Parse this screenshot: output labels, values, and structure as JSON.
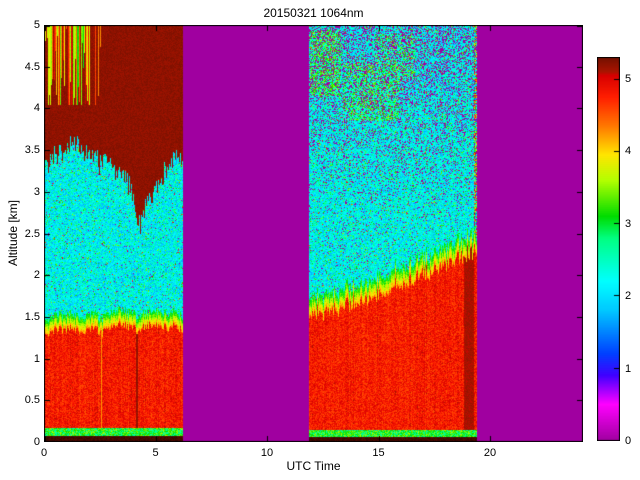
{
  "chart_data": {
    "type": "heatmap",
    "title": "20150321 1064nm",
    "xlabel": "UTC Time",
    "ylabel": "Altitude [km]",
    "xlim": [
      0,
      24.17
    ],
    "ylim": [
      0,
      5
    ],
    "xticks": [
      0,
      5,
      10,
      15,
      20
    ],
    "yticks": [
      0,
      0.5,
      1,
      1.5,
      2,
      2.5,
      3,
      3.5,
      4,
      4.5,
      5
    ],
    "background_value": 0,
    "background_color": "#a000a0",
    "colorbar": {
      "ticks": [
        0,
        1,
        2,
        3,
        4,
        5
      ],
      "vmin": 0,
      "vmax": 5.3
    },
    "colormap": [
      [
        0.0,
        "#a000a0"
      ],
      [
        0.5,
        "#ff00ff"
      ],
      [
        0.9,
        "#4000ff"
      ],
      [
        1.2,
        "#0040ff"
      ],
      [
        1.8,
        "#00c8ff"
      ],
      [
        2.2,
        "#00ffff"
      ],
      [
        2.8,
        "#00ff80"
      ],
      [
        3.1,
        "#00dc00"
      ],
      [
        3.6,
        "#b4ff00"
      ],
      [
        3.95,
        "#ffe600"
      ],
      [
        4.35,
        "#ff7800"
      ],
      [
        4.75,
        "#ff1e00"
      ],
      [
        5.05,
        "#d70000"
      ],
      [
        5.1,
        "#aa1400"
      ],
      [
        5.3,
        "#731000"
      ],
      [
        5.45,
        "#2d0500"
      ]
    ],
    "segments": [
      {
        "name": "morning-block",
        "t_start": 0,
        "t_end": 6.2,
        "surface_dark_top_km": 0.08,
        "surface_green_top_km": 0.17,
        "red_top_km": [
          [
            0,
            1.3
          ],
          [
            0.7,
            1.36
          ],
          [
            1.4,
            1.33
          ],
          [
            2.2,
            1.38
          ],
          [
            2.6,
            1.3
          ],
          [
            3.2,
            1.42
          ],
          [
            3.8,
            1.4
          ],
          [
            4.2,
            1.33
          ],
          [
            4.8,
            1.42
          ],
          [
            5.5,
            1.38
          ],
          [
            6.2,
            1.34
          ]
        ],
        "red_top_jitter": 0.05,
        "transition_km": 0.18,
        "dark_streaks": [
          {
            "t": 2.56,
            "w": 0.04,
            "v": 4.25
          },
          {
            "t": 4.15,
            "w": 0.035,
            "v": 5.18
          }
        ],
        "cloud_base_km": [
          [
            0,
            3.32
          ],
          [
            0.8,
            3.5
          ],
          [
            1.6,
            3.55
          ],
          [
            2.3,
            3.38
          ],
          [
            3.0,
            3.32
          ],
          [
            3.7,
            3.18
          ],
          [
            4.3,
            2.56
          ],
          [
            4.7,
            2.98
          ],
          [
            5.1,
            3.12
          ],
          [
            5.7,
            3.34
          ],
          [
            6.2,
            3.42
          ]
        ],
        "cloud_edge_jitter": 0.22,
        "stripe_zone": {
          "t_end": 2.6,
          "h_start": 4.05
        },
        "purple_prob_base": 0.015,
        "purple_h0": 4.0,
        "purple_slope": 0.0,
        "green_speck_prob": 0.05,
        "clear_base": 1.55,
        "clear_range": 1.2
      },
      {
        "name": "afternoon-block",
        "t_start": 11.85,
        "t_end": 19.4,
        "surface_dark_top_km": 0.07,
        "surface_green_top_km": 0.15,
        "red_top_km": [
          [
            11.85,
            1.52
          ],
          [
            12.5,
            1.56
          ],
          [
            13.2,
            1.62
          ],
          [
            14.0,
            1.68
          ],
          [
            15.0,
            1.78
          ],
          [
            16.0,
            1.9
          ],
          [
            17.0,
            2.0
          ],
          [
            18.0,
            2.12
          ],
          [
            18.7,
            2.22
          ],
          [
            19.4,
            2.32
          ]
        ],
        "red_top_jitter": 0.09,
        "transition_km": 0.22,
        "dark_streaks": [
          {
            "t": 19.05,
            "w": 0.22,
            "v": 5.12
          }
        ],
        "purple_prob_base": 0.04,
        "purple_h0": 2.6,
        "purple_slope": 0.13,
        "green_speck_prob": 0.06,
        "clear_base": 1.55,
        "clear_range": 1.2,
        "edge_noise": true,
        "green_patches": [
          {
            "t": [
              11.9,
              13.3
            ],
            "h": [
              4.15,
              4.95
            ],
            "density": 0.5
          },
          {
            "t": [
              13.4,
              15.9
            ],
            "h": [
              3.85,
              4.55
            ],
            "density": 0.35
          },
          {
            "t": [
              14.8,
              16.6
            ],
            "h": [
              4.35,
              4.9
            ],
            "density": 0.3
          }
        ]
      }
    ]
  }
}
